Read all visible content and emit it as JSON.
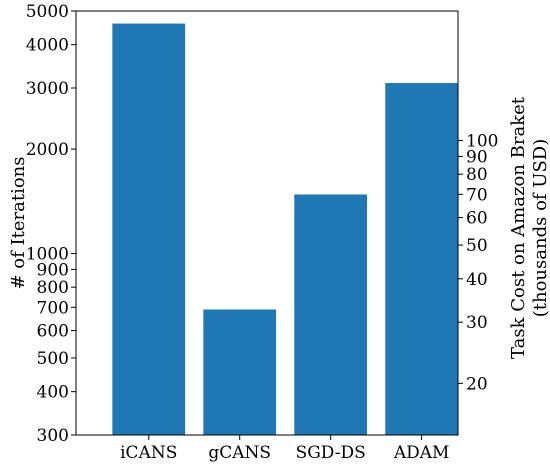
{
  "chart_data": {
    "type": "bar",
    "categories": [
      "iCANS",
      "gCANS",
      "SGD-DS",
      "ADAM"
    ],
    "values": [
      4600,
      690,
      1480,
      3100
    ],
    "bar_color": "#1f77b4",
    "ylabel": "# of Iterations",
    "y_scale": "log",
    "ylim": [
      300,
      5000
    ],
    "y_ticks": [
      {
        "value": 300,
        "label": "300"
      },
      {
        "value": 400,
        "label": "400"
      },
      {
        "value": 500,
        "label": "500"
      },
      {
        "value": 600,
        "label": "600"
      },
      {
        "value": 700,
        "label": "700"
      },
      {
        "value": 800,
        "label": "800"
      },
      {
        "value": 900,
        "label": "900"
      },
      {
        "value": 1000,
        "label": "1000"
      },
      {
        "value": 2000,
        "label": "2000"
      },
      {
        "value": 3000,
        "label": "3000"
      },
      {
        "value": 4000,
        "label": "4000"
      },
      {
        "value": 5000,
        "label": "5000"
      }
    ],
    "y2label_line1": "Task Cost on Amazon Braket",
    "y2label_line2": "(thousands of USD)",
    "y2_scale": "log",
    "y2lim": [
      14.2,
      236
    ],
    "y2_ticks": [
      {
        "value": 20,
        "label": "20"
      },
      {
        "value": 30,
        "label": "30"
      },
      {
        "value": 40,
        "label": "40"
      },
      {
        "value": 50,
        "label": "50"
      },
      {
        "value": 60,
        "label": "60"
      },
      {
        "value": 70,
        "label": "70"
      },
      {
        "value": 80,
        "label": "80"
      },
      {
        "value": 90,
        "label": "90"
      },
      {
        "value": 100,
        "label": "100"
      }
    ],
    "grid": false
  }
}
